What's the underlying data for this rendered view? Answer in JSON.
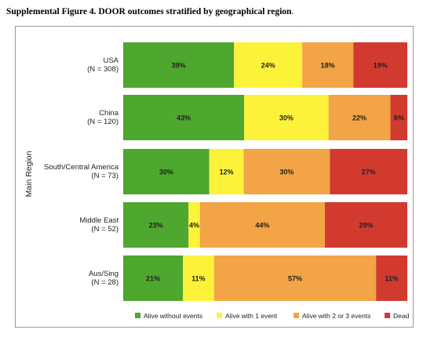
{
  "caption": {
    "bold": "Supplemental Figure 4. DOOR outcomes stratified by geographical region",
    "tail": "."
  },
  "colors": [
    "#4ea72e",
    "#fdf23a",
    "#f2a446",
    "#d23a30"
  ],
  "chart_data": {
    "type": "bar",
    "orientation": "horizontal",
    "stacked": "percent",
    "title": "",
    "ylabel": "Main Region",
    "xlabel": "",
    "xlim": [
      0,
      100
    ],
    "categories": [
      [
        "USA",
        "(N = 308)"
      ],
      [
        "China",
        "(N = 120)"
      ],
      [
        "South/Central America",
        "(N = 73)"
      ],
      [
        "Middle East",
        "(N = 52)"
      ],
      [
        "Aus/Sing",
        "(N = 28)"
      ]
    ],
    "series": [
      {
        "name": "Alive without events",
        "values": [
          39,
          43,
          30,
          23,
          21
        ]
      },
      {
        "name": "Alive with 1 event",
        "values": [
          24,
          30,
          12,
          4,
          11
        ]
      },
      {
        "name": "Alive with 2 or 3 events",
        "values": [
          18,
          22,
          30,
          44,
          57
        ]
      },
      {
        "name": "Dead",
        "values": [
          19,
          6,
          27,
          29,
          11
        ]
      }
    ],
    "data_label_suffix": "%",
    "legend_position": "bottom",
    "grid": false
  }
}
